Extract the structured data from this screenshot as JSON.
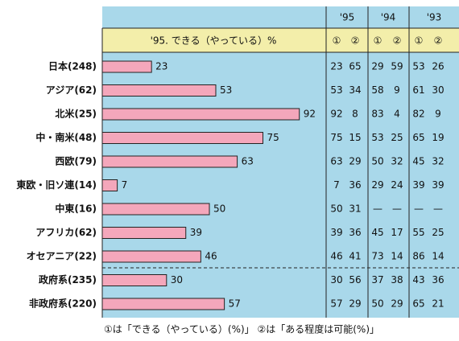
{
  "chart_data": {
    "type": "bar",
    "orientation": "horizontal",
    "title": "'95. できる（やっている）%",
    "categories": [
      "日本(248)",
      "アジア(62)",
      "北米(25)",
      "中・南米(48)",
      "西欧(79)",
      "東欧・旧ソ連(14)",
      "中東(16)",
      "アフリカ(62)",
      "オセアニア(22)",
      "政府系(235)",
      "非政府系(220)"
    ],
    "values": [
      23,
      53,
      92,
      75,
      63,
      7,
      50,
      39,
      46,
      30,
      57
    ],
    "color": "#f4a7bb"
  },
  "table": {
    "years": [
      "'95",
      "'94",
      "'93"
    ],
    "columns": [
      "①",
      "②",
      "①",
      "②",
      "①",
      "②"
    ],
    "rows": [
      [
        "23",
        "65",
        "29",
        "59",
        "53",
        "26"
      ],
      [
        "53",
        "34",
        "58",
        "9",
        "61",
        "30"
      ],
      [
        "92",
        "8",
        "83",
        "4",
        "82",
        "9"
      ],
      [
        "75",
        "15",
        "53",
        "25",
        "65",
        "19"
      ],
      [
        "63",
        "29",
        "50",
        "32",
        "45",
        "32"
      ],
      [
        "7",
        "36",
        "29",
        "24",
        "39",
        "39"
      ],
      [
        "50",
        "31",
        "—",
        "—",
        "—",
        "—"
      ],
      [
        "39",
        "36",
        "45",
        "17",
        "55",
        "25"
      ],
      [
        "46",
        "41",
        "73",
        "14",
        "86",
        "14"
      ],
      [
        "30",
        "56",
        "37",
        "38",
        "43",
        "36"
      ],
      [
        "57",
        "29",
        "50",
        "29",
        "65",
        "21"
      ]
    ]
  },
  "note": "①は「できる（やっている）(%)」 ②は「ある程度は可能(%)」"
}
